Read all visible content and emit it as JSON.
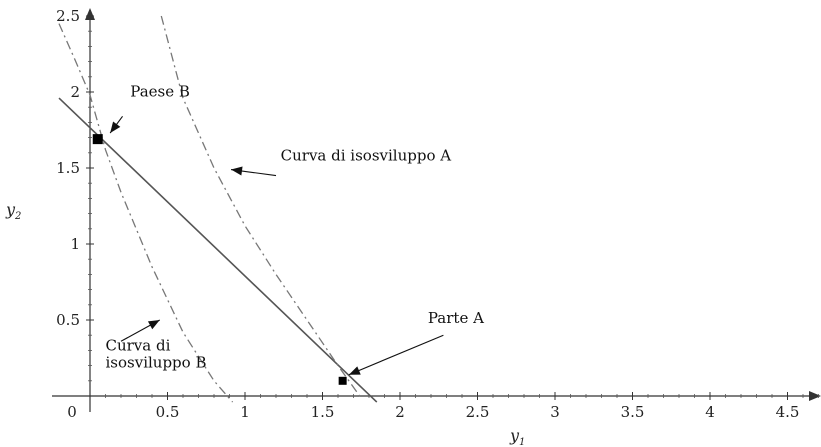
{
  "chart_data": {
    "type": "line",
    "xlabel": "y",
    "xlabel_sub": "1",
    "ylabel": "y",
    "ylabel_sub": "2",
    "xlim": [
      0,
      4.75
    ],
    "ylim": [
      0,
      2.5
    ],
    "x_ticks": [
      {
        "v": 0,
        "label": "0"
      },
      {
        "v": 0.5,
        "label": "0.5"
      },
      {
        "v": 1,
        "label": "1"
      },
      {
        "v": 1.5,
        "label": "1.5"
      },
      {
        "v": 2,
        "label": "2"
      },
      {
        "v": 2.5,
        "label": "2.5"
      },
      {
        "v": 3,
        "label": "3"
      },
      {
        "v": 3.5,
        "label": "3.5"
      },
      {
        "v": 4,
        "label": "4"
      },
      {
        "v": 4.5,
        "label": "4.5"
      }
    ],
    "y_ticks": [
      {
        "v": 0.5,
        "label": "0.5"
      },
      {
        "v": 1,
        "label": "1"
      },
      {
        "v": 1.5,
        "label": "1.5"
      },
      {
        "v": 2,
        "label": "2"
      },
      {
        "v": 2.5,
        "label": "2.5"
      }
    ],
    "series": [
      {
        "style": "solid",
        "x": [
          -0.2,
          1.85
        ],
        "y": [
          1.96,
          -0.04
        ]
      },
      {
        "style": "dashdot",
        "x": [
          0.46,
          0.6,
          0.8,
          1.0,
          1.2,
          1.4,
          1.6,
          1.74
        ],
        "y": [
          2.5,
          1.96,
          1.5,
          1.12,
          0.8,
          0.5,
          0.2,
          0.0
        ]
      },
      {
        "style": "dashdot",
        "x": [
          -0.2,
          -0.1,
          0.0,
          0.1,
          0.2,
          0.4,
          0.6,
          0.8,
          0.92
        ],
        "y": [
          2.45,
          2.22,
          1.98,
          1.62,
          1.34,
          0.85,
          0.42,
          0.1,
          -0.04
        ]
      }
    ],
    "points": [
      {
        "name": "paese-b-point",
        "x": 0.05,
        "y": 1.69,
        "size": 10
      },
      {
        "name": "parte-a-point",
        "x": 1.63,
        "y": 0.1,
        "size": 8
      }
    ],
    "annotations": [
      {
        "name": "label-paese-b",
        "lines": [
          "Paese B"
        ],
        "tx": 0.26,
        "ty": 1.97,
        "ax": 0.21,
        "ay": 1.84,
        "hx": 0.13,
        "hy": 1.73
      },
      {
        "name": "label-curva-a",
        "lines": [
          "Curva di isosviluppo A"
        ],
        "tx": 1.23,
        "ty": 1.55,
        "ax": 1.2,
        "ay": 1.45,
        "hx": 0.91,
        "hy": 1.49
      },
      {
        "name": "label-curva-b",
        "lines": [
          "Curva di",
          "isosviluppo B"
        ],
        "tx": 0.1,
        "ty": 0.3,
        "ax": 0.2,
        "ay": 0.36,
        "hx": 0.45,
        "hy": 0.5
      },
      {
        "name": "label-parte-a",
        "lines": [
          "Parte A"
        ],
        "tx": 2.18,
        "ty": 0.48,
        "ax": 2.28,
        "ay": 0.4,
        "hx": 1.67,
        "hy": 0.14
      }
    ]
  }
}
